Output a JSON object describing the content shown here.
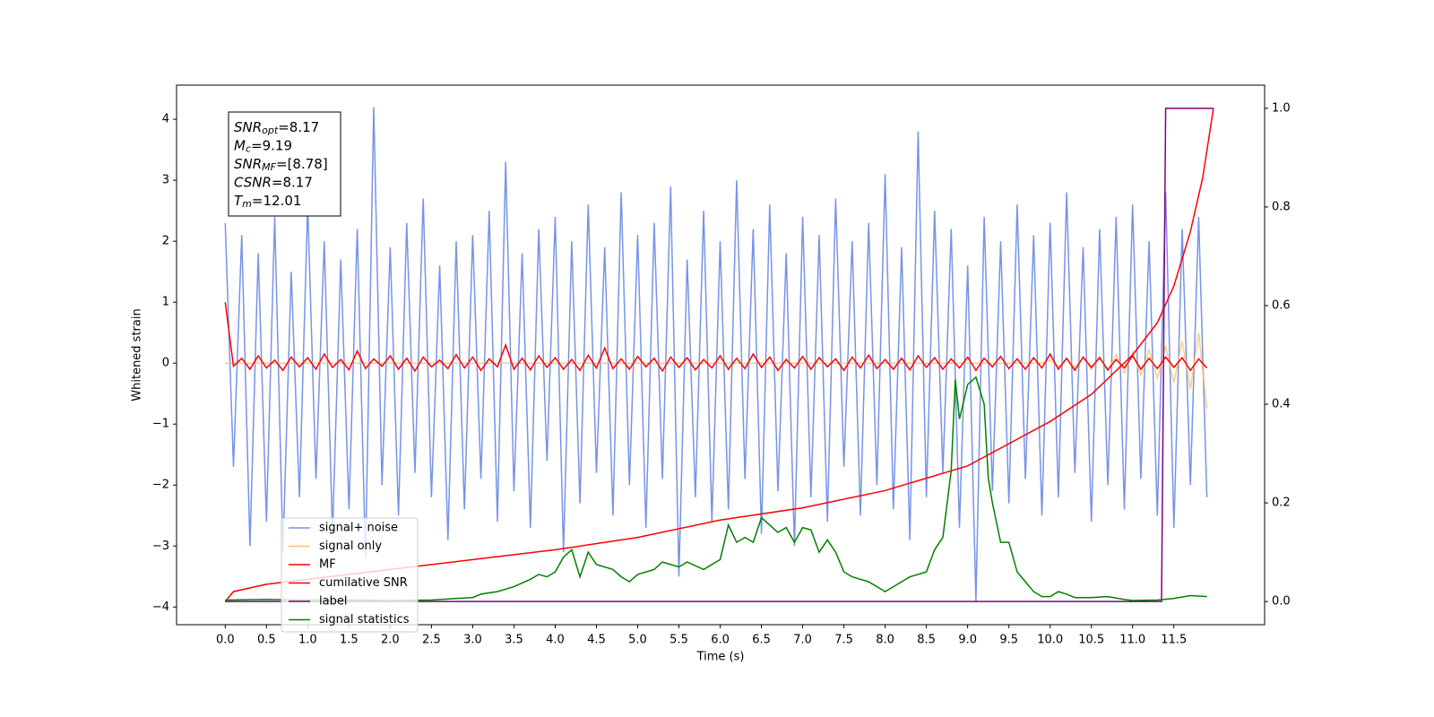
{
  "chart_data": {
    "type": "line",
    "xlabel": "Time (s)",
    "ylabel": "Whitened strain",
    "annotation": [
      {
        "symbol": "SNR",
        "subscript": "opt",
        "text": "=8.17"
      },
      {
        "symbol": "M",
        "subscript": "c",
        "text": "=9.19"
      },
      {
        "symbol": "SNR",
        "subscript": "MF",
        "text": "=[8.78]"
      },
      {
        "symbol": "CSNR",
        "subscript": null,
        "text": "=8.17"
      },
      {
        "symbol": "T",
        "subscript": "m",
        "text": "=12.01"
      }
    ],
    "xlim": [
      -0.59,
      12.6
    ],
    "ylim": [
      -4.29,
      4.56
    ],
    "y2lim": [
      -0.047,
      1.047
    ],
    "xticks": [
      {
        "value": 0,
        "label": "0.0"
      },
      0.5,
      {
        "value": 1,
        "label": "1.0"
      },
      1.5,
      {
        "value": 2,
        "label": "2.0"
      },
      2.5,
      {
        "value": 3,
        "label": "3.0"
      },
      3.5,
      {
        "value": 4,
        "label": "4.0"
      },
      4.5,
      {
        "value": 5,
        "label": "5.0"
      },
      5.5,
      {
        "value": 6,
        "label": "6.0"
      },
      6.5,
      {
        "value": 7,
        "label": "7.0"
      },
      7.5,
      {
        "value": 8,
        "label": "8.0"
      },
      8.5,
      {
        "value": 9,
        "label": "9.0"
      },
      9.5,
      {
        "value": 10,
        "label": "10.0"
      },
      10.5,
      {
        "value": 11,
        "label": "11.0"
      },
      11.5
    ],
    "yticks": [
      {
        "value": -4,
        "label": "−4"
      },
      {
        "value": -3,
        "label": "−3"
      },
      {
        "value": -2,
        "label": "−2"
      },
      {
        "value": -1,
        "label": "−1"
      },
      0,
      1,
      2,
      3,
      4
    ],
    "y2ticks": [
      {
        "value": 0,
        "label": "0.0"
      },
      0.2,
      0.4,
      0.6,
      0.8,
      {
        "value": 1,
        "label": "1.0"
      }
    ],
    "legend": "lower left",
    "x": [
      0.0,
      0.1,
      0.2,
      0.3,
      0.4,
      0.5,
      0.6,
      0.7,
      0.8,
      0.9,
      1.0,
      1.1,
      1.2,
      1.3,
      1.4,
      1.5,
      1.6,
      1.7,
      1.8,
      1.9,
      2.0,
      2.1,
      2.2,
      2.3,
      2.4,
      2.5,
      2.6,
      2.7,
      2.8,
      2.9,
      3.0,
      3.1,
      3.2,
      3.3,
      3.4,
      3.5,
      3.6,
      3.7,
      3.8,
      3.9,
      4.0,
      4.1,
      4.2,
      4.3,
      4.4,
      4.5,
      4.6,
      4.7,
      4.8,
      4.9,
      5.0,
      5.1,
      5.2,
      5.3,
      5.4,
      5.5,
      5.6,
      5.7,
      5.8,
      5.9,
      6.0,
      6.1,
      6.2,
      6.3,
      6.4,
      6.5,
      6.6,
      6.7,
      6.8,
      6.9,
      7.0,
      7.1,
      7.2,
      7.3,
      7.4,
      7.5,
      7.6,
      7.7,
      7.8,
      7.9,
      8.0,
      8.1,
      8.2,
      8.3,
      8.4,
      8.5,
      8.6,
      8.7,
      8.8,
      8.9,
      9.0,
      9.1,
      9.2,
      9.3,
      9.4,
      9.5,
      9.6,
      9.7,
      9.8,
      9.9,
      10.0,
      10.1,
      10.2,
      10.3,
      10.4,
      10.5,
      10.6,
      10.7,
      10.8,
      10.9,
      11.0,
      11.1,
      11.2,
      11.3,
      11.4,
      11.5,
      11.6,
      11.7,
      11.8,
      11.9
    ],
    "series": [
      {
        "name": "signal+ noise",
        "color": "#7793e8",
        "values": [
          2.3,
          -1.7,
          2.1,
          -3.0,
          1.8,
          -2.6,
          2.4,
          -3.1,
          1.5,
          -2.2,
          2.6,
          -1.9,
          2.0,
          -2.8,
          1.7,
          -2.4,
          2.2,
          -3.2,
          4.2,
          -2.0,
          1.9,
          -2.5,
          2.3,
          -1.8,
          2.7,
          -2.2,
          1.6,
          -2.9,
          2.0,
          -2.4,
          2.1,
          -1.9,
          2.5,
          -2.6,
          3.3,
          -2.1,
          1.8,
          -2.7,
          2.2,
          -1.6,
          2.4,
          -3.1,
          2.0,
          -2.3,
          2.6,
          -1.8,
          1.9,
          -2.5,
          2.8,
          -2.0,
          2.1,
          -2.7,
          2.3,
          -1.9,
          2.9,
          -3.5,
          1.7,
          -2.2,
          2.5,
          -2.6,
          2.0,
          -2.4,
          3.0,
          -1.9,
          2.2,
          -2.8,
          2.6,
          -2.1,
          1.8,
          -3.0,
          2.4,
          -2.2,
          2.1,
          -2.6,
          2.7,
          -1.7,
          2.0,
          -2.5,
          2.3,
          -2.0,
          3.1,
          -2.4,
          1.9,
          -2.9,
          3.8,
          -2.2,
          2.5,
          -1.8,
          2.2,
          -2.7,
          1.6,
          -3.9,
          2.4,
          -2.1,
          2.0,
          -2.3,
          2.6,
          -1.9,
          2.1,
          -2.5,
          2.3,
          -2.2,
          2.8,
          -1.8,
          1.9,
          -2.6,
          2.2,
          -2.0,
          2.4,
          -2.4,
          2.6,
          -1.9,
          2.0,
          -2.5,
          2.8,
          -2.7,
          2.2,
          -2.0,
          2.4,
          -2.2
        ]
      },
      {
        "name": "signal only",
        "color": "#f5c26b",
        "values": [
          0,
          0,
          0,
          0,
          0,
          0,
          0,
          0,
          0,
          0,
          0,
          0,
          0,
          0,
          0,
          0,
          0,
          0,
          0,
          0,
          0,
          0,
          0,
          0,
          0,
          0,
          0,
          0,
          0,
          0,
          0,
          0,
          0,
          0,
          0,
          0,
          0,
          0,
          0,
          0,
          0,
          0,
          0,
          0,
          0,
          0,
          0,
          0,
          0,
          0,
          0,
          0,
          0,
          0,
          0,
          0,
          0,
          0,
          0,
          0,
          0,
          0,
          0,
          0,
          0,
          0,
          0,
          0,
          0,
          0,
          0,
          0,
          0,
          0,
          0,
          0,
          0,
          0,
          0,
          0,
          0,
          0,
          0,
          0,
          0,
          0,
          0,
          0,
          0,
          0,
          0,
          0,
          0,
          0,
          0,
          0,
          0,
          0,
          0,
          0,
          0.05,
          -0.06,
          0.07,
          -0.08,
          0.09,
          -0.1,
          0.11,
          -0.13,
          0.14,
          -0.16,
          0.18,
          -0.2,
          0.22,
          -0.25,
          0.28,
          -0.32,
          0.36,
          -0.42,
          0.5,
          -0.75
        ]
      },
      {
        "name": "MF",
        "color": "#ff0000",
        "values": [
          1.0,
          -0.05,
          0.08,
          -0.1,
          0.12,
          -0.08,
          0.05,
          -0.12,
          0.1,
          -0.06,
          0.09,
          -0.1,
          0.15,
          -0.07,
          0.06,
          -0.11,
          0.2,
          -0.09,
          0.07,
          -0.05,
          0.12,
          -0.1,
          0.08,
          -0.13,
          0.1,
          -0.06,
          0.05,
          -0.09,
          0.14,
          -0.08,
          0.1,
          -0.12,
          0.07,
          -0.06,
          0.3,
          -0.1,
          0.08,
          -0.11,
          0.12,
          -0.07,
          0.09,
          -0.1,
          0.06,
          -0.12,
          0.13,
          -0.08,
          0.25,
          -0.09,
          0.07,
          -0.1,
          0.11,
          -0.06,
          0.08,
          -0.13,
          0.1,
          -0.07,
          0.09,
          -0.11,
          0.06,
          -0.08,
          0.12,
          -0.1,
          0.08,
          -0.09,
          0.15,
          -0.07,
          0.1,
          -0.12,
          0.06,
          -0.08,
          0.11,
          -0.1,
          0.09,
          -0.06,
          0.07,
          -0.12,
          0.1,
          -0.08,
          0.13,
          -0.09,
          0.06,
          -0.1,
          0.08,
          -0.11,
          0.12,
          -0.07,
          0.09,
          -0.1,
          0.07,
          -0.08,
          0.1,
          -0.12,
          0.08,
          -0.06,
          0.11,
          -0.09,
          0.07,
          -0.1,
          0.09,
          -0.08,
          0.15,
          -0.1,
          0.08,
          -0.12,
          0.1,
          -0.07,
          0.09,
          -0.11,
          0.06,
          -0.08,
          0.12,
          -0.1,
          0.08,
          -0.09,
          0.1,
          -0.07,
          0.09,
          -0.12,
          0.07,
          -0.08
        ]
      },
      {
        "name": "cumilative SNR",
        "color": "#ff0000",
        "axis": "y2",
        "x": [
          0,
          0.1,
          0.5,
          1,
          2,
          3,
          4,
          5,
          6,
          7,
          8,
          9,
          10,
          10.5,
          11,
          11.3,
          11.5,
          11.7,
          11.85,
          11.98
        ],
        "values": [
          0.0,
          0.02,
          0.035,
          0.045,
          0.065,
          0.085,
          0.105,
          0.13,
          0.165,
          0.19,
          0.225,
          0.275,
          0.365,
          0.42,
          0.5,
          0.565,
          0.64,
          0.75,
          0.86,
          1.0
        ]
      },
      {
        "name": "label",
        "color": "#800080",
        "axis": "y2",
        "x": [
          0,
          11.35,
          11.4,
          11.98
        ],
        "values": [
          0,
          0,
          1,
          1
        ]
      },
      {
        "name": "signal statistics",
        "color": "#008000",
        "axis": "y2",
        "x": [
          0,
          0.5,
          1,
          1.5,
          2,
          2.5,
          2.8,
          3.0,
          3.1,
          3.3,
          3.5,
          3.7,
          3.8,
          3.9,
          4.0,
          4.1,
          4.2,
          4.3,
          4.4,
          4.5,
          4.7,
          4.8,
          4.9,
          5.0,
          5.2,
          5.3,
          5.5,
          5.6,
          5.8,
          6.0,
          6.1,
          6.2,
          6.3,
          6.4,
          6.5,
          6.6,
          6.7,
          6.8,
          6.9,
          7.0,
          7.1,
          7.2,
          7.3,
          7.4,
          7.5,
          7.6,
          7.8,
          8.0,
          8.1,
          8.3,
          8.5,
          8.6,
          8.7,
          8.8,
          8.85,
          8.9,
          9.0,
          9.1,
          9.2,
          9.25,
          9.3,
          9.4,
          9.5,
          9.6,
          9.7,
          9.8,
          9.9,
          10.0,
          10.1,
          10.2,
          10.3,
          10.5,
          10.7,
          10.9,
          11.0,
          11.3,
          11.5,
          11.7,
          11.9
        ],
        "values": [
          0.003,
          0.004,
          0.003,
          0.003,
          0.002,
          0.003,
          0.006,
          0.008,
          0.015,
          0.02,
          0.03,
          0.045,
          0.055,
          0.05,
          0.06,
          0.09,
          0.105,
          0.05,
          0.1,
          0.075,
          0.065,
          0.05,
          0.04,
          0.055,
          0.065,
          0.08,
          0.07,
          0.08,
          0.065,
          0.085,
          0.155,
          0.12,
          0.13,
          0.12,
          0.17,
          0.155,
          0.14,
          0.15,
          0.12,
          0.15,
          0.145,
          0.1,
          0.125,
          0.1,
          0.06,
          0.05,
          0.04,
          0.02,
          0.03,
          0.05,
          0.06,
          0.105,
          0.13,
          0.265,
          0.45,
          0.37,
          0.44,
          0.455,
          0.4,
          0.25,
          0.2,
          0.12,
          0.12,
          0.06,
          0.04,
          0.02,
          0.01,
          0.01,
          0.02,
          0.015,
          0.008,
          0.008,
          0.01,
          0.004,
          0.002,
          0.003,
          0.006,
          0.012,
          0.01
        ]
      }
    ]
  }
}
